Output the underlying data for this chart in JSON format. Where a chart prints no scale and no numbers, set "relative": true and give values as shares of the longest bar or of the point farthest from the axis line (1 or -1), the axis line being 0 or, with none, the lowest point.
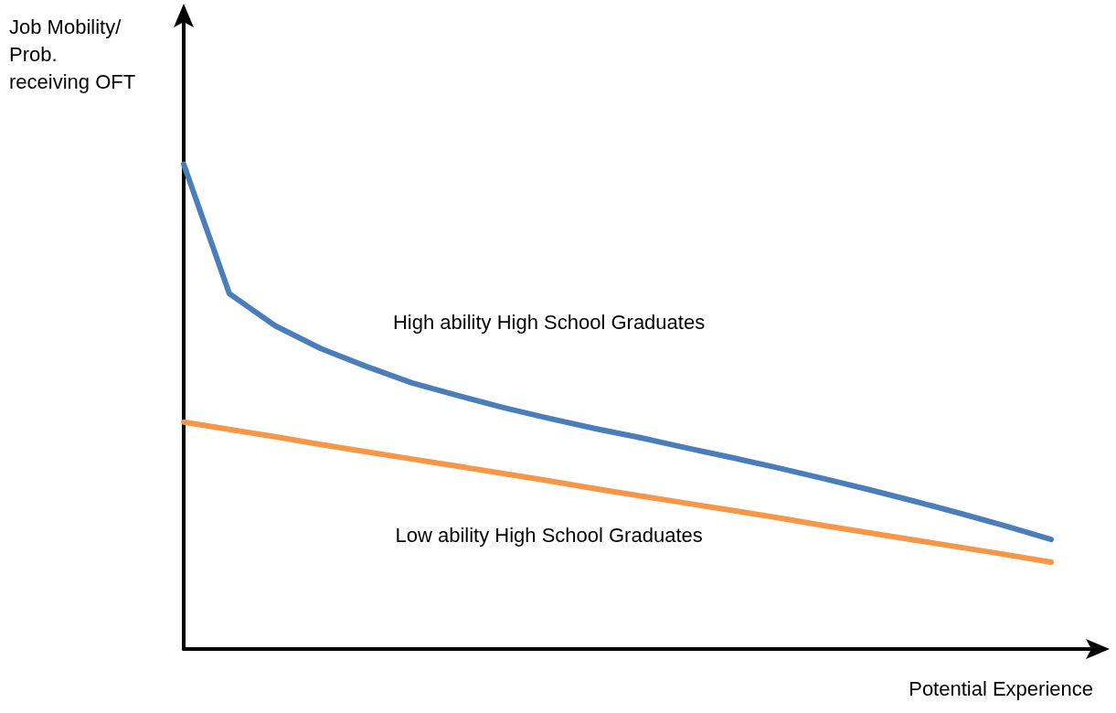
{
  "chart_data": {
    "type": "line",
    "relative": true,
    "xlabel": "Potential Experience",
    "ylabel": "Job Mobility/\nProb.\nreceiving OFT",
    "categories": [
      null,
      null,
      null,
      null,
      null,
      null,
      null,
      null,
      null,
      null,
      null,
      null,
      null,
      null,
      null,
      null,
      null,
      null,
      null,
      null
    ],
    "series": [
      {
        "name": "High ability High School Graduates",
        "color": "#4a7ebb",
        "values": [
          1.0,
          0.733,
          0.667,
          0.62,
          0.583,
          0.549,
          0.523,
          0.498,
          0.476,
          0.455,
          0.436,
          0.415,
          0.395,
          0.374,
          0.352,
          0.329,
          0.305,
          0.28,
          0.254,
          0.226
        ]
      },
      {
        "name": "Low ability High School Graduates",
        "color": "#f79646",
        "values": [
          0.468,
          0.453,
          0.438,
          0.422,
          0.407,
          0.392,
          0.377,
          0.362,
          0.347,
          0.331,
          0.316,
          0.301,
          0.286,
          0.271,
          0.255,
          0.24,
          0.225,
          0.21,
          0.195,
          0.179
        ]
      }
    ],
    "legend": false,
    "grid": false,
    "marker": "none",
    "line_style": "solid"
  }
}
